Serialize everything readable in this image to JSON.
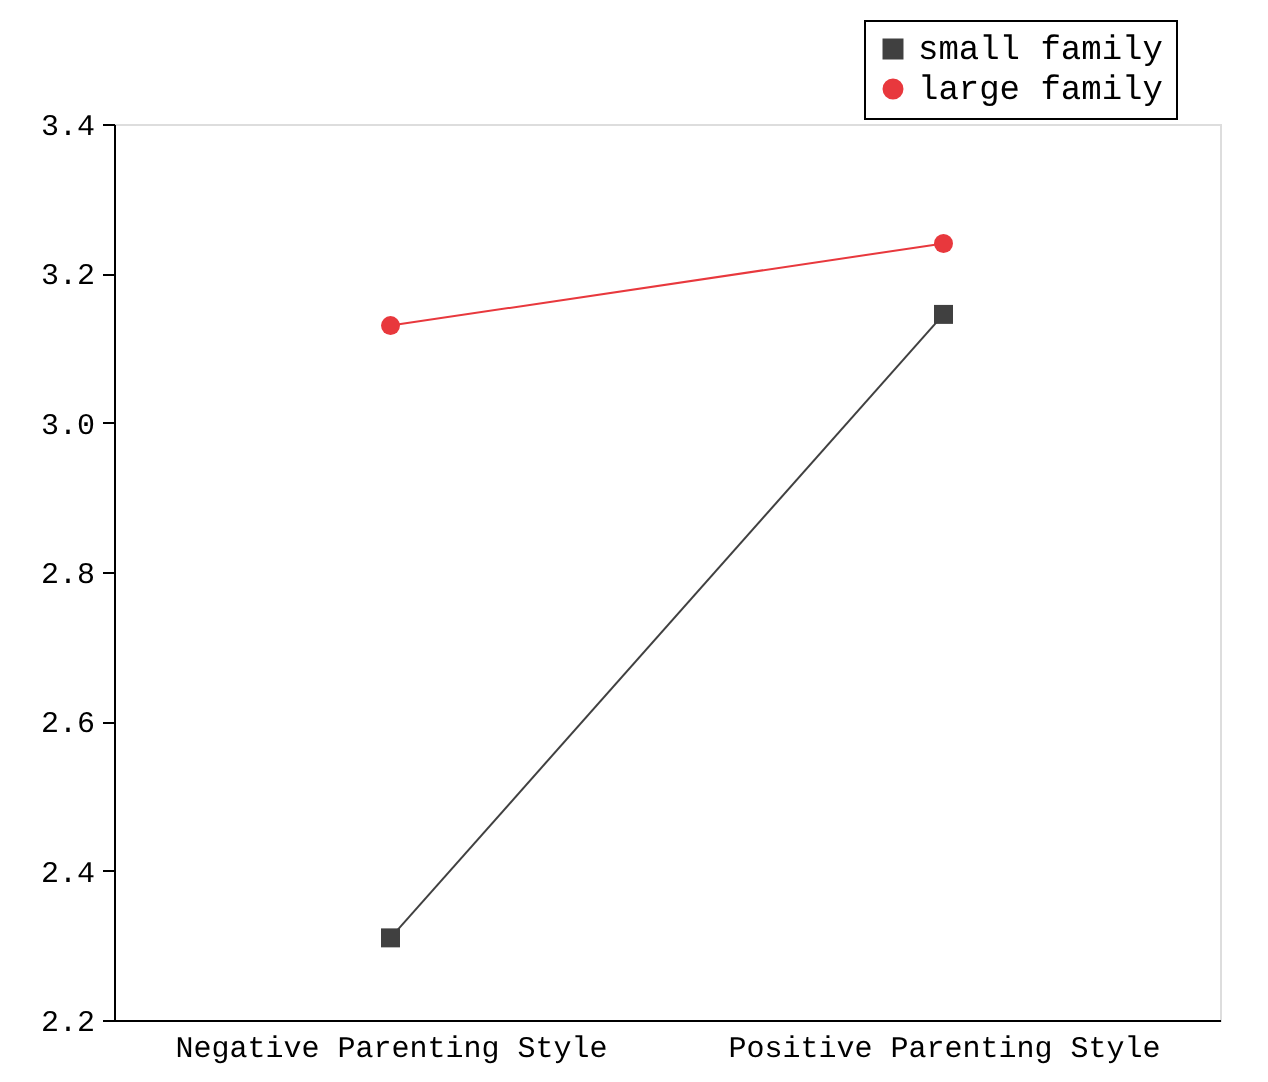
{
  "chart_data": {
    "type": "line",
    "categories": [
      "Negative Parenting Style",
      "Positive Parenting Style"
    ],
    "series": [
      {
        "name": "small family",
        "color": "#404040",
        "values": [
          2.31,
          3.145
        ],
        "marker": "square"
      },
      {
        "name": "large family",
        "color": "#e8383d",
        "values": [
          3.13,
          3.24
        ],
        "marker": "circle"
      }
    ],
    "ylim": [
      2.2,
      3.4
    ],
    "yticks": [
      2.2,
      2.4,
      2.6,
      2.8,
      {
        "value": 3,
        "label": "3.0"
      },
      3.2,
      3.4
    ],
    "grid": false,
    "legend": "top right",
    "line_style": "solid"
  }
}
